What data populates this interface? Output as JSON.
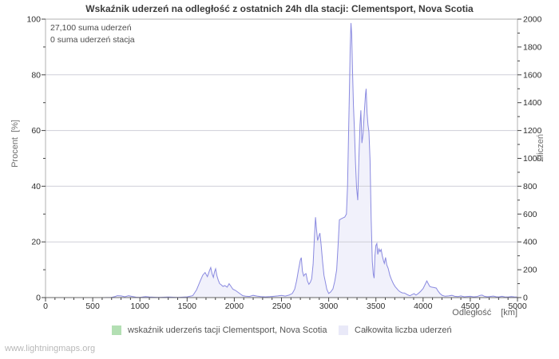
{
  "title": "Wskaźnik uderzeń na odległość z ostatnich 24h dla stacji: Clementsport, Nova Scotia",
  "annotation": {
    "line1": "27,100 suma uderzeń",
    "line2": "0 suma uderzeń stacja"
  },
  "axes": {
    "left": {
      "label": "Procent  [%]",
      "ticks": [
        0,
        20,
        40,
        60,
        80,
        100
      ],
      "minor_step": 10,
      "range": [
        0,
        100
      ]
    },
    "right": {
      "label": "Zliczeń",
      "ticks": [
        0,
        200,
        400,
        600,
        800,
        1000,
        1200,
        1400,
        1600,
        1800,
        2000
      ],
      "minor_step": 100,
      "range": [
        0,
        2000
      ]
    },
    "x": {
      "name": "Odległość",
      "unit": "[km]",
      "ticks": [
        0,
        500,
        1000,
        1500,
        2000,
        2500,
        3000,
        3500,
        4000,
        4500,
        5000
      ],
      "minor_step": 100,
      "range": [
        0,
        5000
      ]
    }
  },
  "legend": {
    "items": [
      {
        "label": "wskaźnik uderzeńs tacji Clementsport, Nova Scotia",
        "swatch_color": "#b3dfb3"
      },
      {
        "label": "Całkowita liczba uderzeń",
        "swatch_color": "#e9e9f8"
      }
    ]
  },
  "watermark": "www.lightningmaps.org",
  "colors": {
    "area_fill": "#f1f1fb",
    "line": "#8a8ae0",
    "grid": "#cfcfd8",
    "border": "#b0b0b0",
    "axis": "#666666",
    "tick": "#444444",
    "text": "#2f2f2f"
  },
  "chart_data": {
    "type": "area",
    "title": "Wskaźnik uderzeń na odległość z ostatnich 24h dla stacji: Clementsport, Nova Scotia",
    "xlabel": "Odległość [km]",
    "ylabel_left": "Procent [%]",
    "ylabel_right": "Zliczeń",
    "xlim": [
      0,
      5000
    ],
    "ylim_left": [
      0,
      100
    ],
    "ylim_right": [
      0,
      2000
    ],
    "grid": "horizontal at 20/40/60/80 %",
    "legend_position": "bottom",
    "annotations": [
      "27,100 suma uderzeń",
      "0 suma uderzeń stacja"
    ],
    "series": [
      {
        "name": "Całkowita liczba uderzeń",
        "axis": "right",
        "color": "#8a8ae0",
        "fill": "#f1f1fb",
        "points": [
          [
            0,
            0
          ],
          [
            200,
            0
          ],
          [
            400,
            0
          ],
          [
            600,
            0
          ],
          [
            700,
            2
          ],
          [
            740,
            8
          ],
          [
            760,
            14
          ],
          [
            800,
            12
          ],
          [
            840,
            6
          ],
          [
            880,
            13
          ],
          [
            920,
            8
          ],
          [
            960,
            3
          ],
          [
            1000,
            2
          ],
          [
            1060,
            7
          ],
          [
            1100,
            4
          ],
          [
            1200,
            2
          ],
          [
            1300,
            4
          ],
          [
            1400,
            2
          ],
          [
            1500,
            5
          ],
          [
            1560,
            14
          ],
          [
            1600,
            55
          ],
          [
            1640,
            120
          ],
          [
            1665,
            160
          ],
          [
            1690,
            180
          ],
          [
            1715,
            150
          ],
          [
            1735,
            190
          ],
          [
            1750,
            216
          ],
          [
            1765,
            170
          ],
          [
            1778,
            145
          ],
          [
            1790,
            185
          ],
          [
            1802,
            207
          ],
          [
            1815,
            160
          ],
          [
            1830,
            125
          ],
          [
            1845,
            100
          ],
          [
            1860,
            92
          ],
          [
            1880,
            80
          ],
          [
            1900,
            86
          ],
          [
            1925,
            75
          ],
          [
            1945,
            100
          ],
          [
            1965,
            80
          ],
          [
            1985,
            60
          ],
          [
            2010,
            52
          ],
          [
            2040,
            38
          ],
          [
            2060,
            28
          ],
          [
            2090,
            14
          ],
          [
            2120,
            10
          ],
          [
            2160,
            8
          ],
          [
            2200,
            16
          ],
          [
            2240,
            11
          ],
          [
            2280,
            7
          ],
          [
            2330,
            5
          ],
          [
            2380,
            7
          ],
          [
            2420,
            9
          ],
          [
            2460,
            12
          ],
          [
            2500,
            16
          ],
          [
            2540,
            11
          ],
          [
            2580,
            18
          ],
          [
            2615,
            30
          ],
          [
            2640,
            60
          ],
          [
            2660,
            120
          ],
          [
            2680,
            200
          ],
          [
            2700,
            270
          ],
          [
            2710,
            287
          ],
          [
            2722,
            190
          ],
          [
            2735,
            155
          ],
          [
            2748,
            168
          ],
          [
            2760,
            172
          ],
          [
            2775,
            120
          ],
          [
            2790,
            95
          ],
          [
            2805,
            110
          ],
          [
            2820,
            135
          ],
          [
            2835,
            240
          ],
          [
            2848,
            420
          ],
          [
            2860,
            577
          ],
          [
            2872,
            480
          ],
          [
            2882,
            410
          ],
          [
            2895,
            440
          ],
          [
            2907,
            463
          ],
          [
            2920,
            380
          ],
          [
            2935,
            260
          ],
          [
            2950,
            160
          ],
          [
            2965,
            110
          ],
          [
            2980,
            60
          ],
          [
            3000,
            30
          ],
          [
            3020,
            40
          ],
          [
            3045,
            62
          ],
          [
            3065,
            120
          ],
          [
            3085,
            200
          ],
          [
            3100,
            380
          ],
          [
            3113,
            558
          ],
          [
            3130,
            565
          ],
          [
            3150,
            572
          ],
          [
            3170,
            578
          ],
          [
            3188,
            600
          ],
          [
            3200,
            800
          ],
          [
            3210,
            1150
          ],
          [
            3220,
            1500
          ],
          [
            3228,
            1790
          ],
          [
            3236,
            1972
          ],
          [
            3244,
            1890
          ],
          [
            3252,
            1640
          ],
          [
            3262,
            1380
          ],
          [
            3272,
            1210
          ],
          [
            3283,
            980
          ],
          [
            3295,
            790
          ],
          [
            3308,
            700
          ],
          [
            3320,
            1000
          ],
          [
            3332,
            1240
          ],
          [
            3341,
            1345
          ],
          [
            3352,
            1110
          ],
          [
            3365,
            1180
          ],
          [
            3378,
            1340
          ],
          [
            3390,
            1460
          ],
          [
            3397,
            1500
          ],
          [
            3406,
            1330
          ],
          [
            3416,
            1240
          ],
          [
            3426,
            1190
          ],
          [
            3438,
            985
          ],
          [
            3450,
            560
          ],
          [
            3462,
            260
          ],
          [
            3472,
            170
          ],
          [
            3481,
            140
          ],
          [
            3490,
            300
          ],
          [
            3500,
            375
          ],
          [
            3510,
            388
          ],
          [
            3520,
            310
          ],
          [
            3532,
            350
          ],
          [
            3544,
            330
          ],
          [
            3556,
            345
          ],
          [
            3568,
            300
          ],
          [
            3580,
            265
          ],
          [
            3590,
            245
          ],
          [
            3602,
            288
          ],
          [
            3615,
            235
          ],
          [
            3630,
            210
          ],
          [
            3648,
            160
          ],
          [
            3665,
            130
          ],
          [
            3685,
            100
          ],
          [
            3705,
            78
          ],
          [
            3722,
            65
          ],
          [
            3740,
            50
          ],
          [
            3760,
            40
          ],
          [
            3780,
            34
          ],
          [
            3800,
            33
          ],
          [
            3815,
            28
          ],
          [
            3835,
            20
          ],
          [
            3860,
            13
          ],
          [
            3885,
            22
          ],
          [
            3905,
            28
          ],
          [
            3925,
            18
          ],
          [
            3950,
            30
          ],
          [
            3975,
            45
          ],
          [
            4000,
            65
          ],
          [
            4020,
            92
          ],
          [
            4040,
            120
          ],
          [
            4055,
            100
          ],
          [
            4070,
            80
          ],
          [
            4090,
            75
          ],
          [
            4115,
            72
          ],
          [
            4140,
            68
          ],
          [
            4160,
            45
          ],
          [
            4180,
            28
          ],
          [
            4205,
            15
          ],
          [
            4235,
            10
          ],
          [
            4270,
            12
          ],
          [
            4305,
            16
          ],
          [
            4335,
            9
          ],
          [
            4370,
            7
          ],
          [
            4400,
            12
          ],
          [
            4435,
            6
          ],
          [
            4470,
            8
          ],
          [
            4500,
            9
          ],
          [
            4535,
            5
          ],
          [
            4570,
            7
          ],
          [
            4605,
            16
          ],
          [
            4625,
            18
          ],
          [
            4650,
            9
          ],
          [
            4680,
            6
          ],
          [
            4710,
            8
          ],
          [
            4745,
            11
          ],
          [
            4775,
            6
          ],
          [
            4805,
            5
          ],
          [
            4835,
            9
          ],
          [
            4865,
            5
          ],
          [
            4900,
            4
          ],
          [
            4935,
            7
          ],
          [
            4965,
            5
          ],
          [
            5000,
            4
          ]
        ]
      },
      {
        "name": "wskaźnik uderzeńs tacji Clementsport, Nova Scotia",
        "axis": "left",
        "color": "#b3dfb3",
        "points": [
          [
            0,
            0
          ],
          [
            5000,
            0
          ]
        ]
      }
    ]
  }
}
